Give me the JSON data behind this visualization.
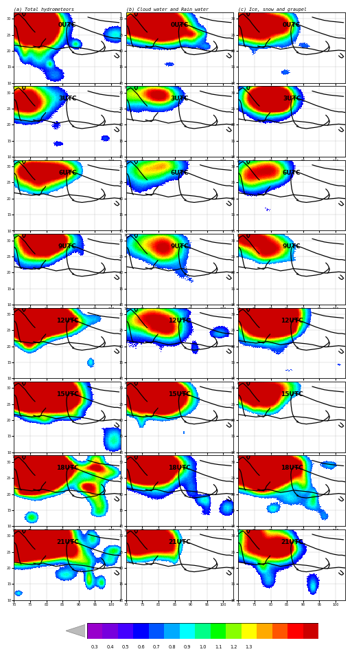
{
  "title_a": "(a) Total hydrometeors",
  "title_b": "(b) Cloud water and Rain water",
  "title_c": "(c) Ice, snow and graupel",
  "time_labels": [
    "0UTC",
    "3UTC",
    "6UTC",
    "9UTC",
    "12UTC",
    "15UTC",
    "18UTC",
    "21UTC"
  ],
  "nrows": 8,
  "ncols": 3,
  "colorbar_values": [
    "0.3",
    "0.4",
    "0.5",
    "0.6",
    "0.7",
    "0.8",
    "0.9",
    "1.0",
    "1.1",
    "1.2",
    "1.3"
  ],
  "colorbar_colors": [
    "#9900cc",
    "#7700dd",
    "#4400ff",
    "#0000ff",
    "#0055ff",
    "#00aaff",
    "#00ffff",
    "#00ff88",
    "#00ff00",
    "#88ff00",
    "#ffff00",
    "#ffaa00",
    "#ff5500",
    "#ff0000",
    "#cc0000"
  ],
  "fig_width": 5.19,
  "fig_height": 9.37,
  "dpi": 100,
  "background": "#ffffff",
  "panel_bg": "#ffffff",
  "grid_color": "#aaaaaa",
  "map_line_color": "#000000",
  "panel_border_color": "#000000",
  "xlim": [
    700,
    1030
  ],
  "ylim": [
    100,
    320
  ],
  "xtick_spacing": 50,
  "ytick_spacing": 50
}
